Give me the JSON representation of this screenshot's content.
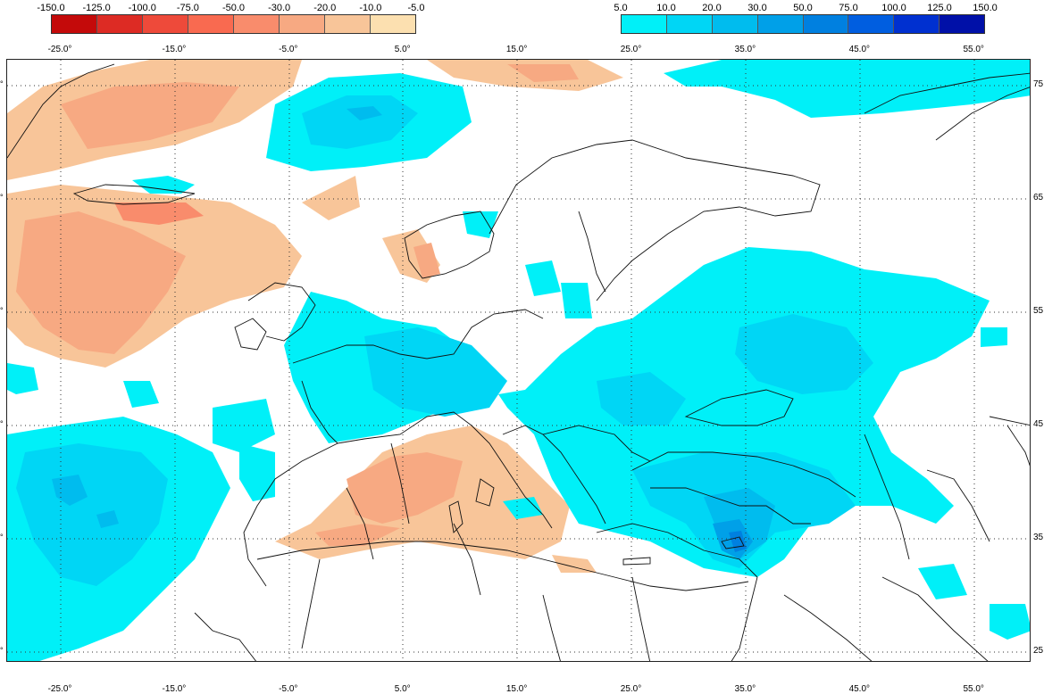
{
  "legend_negative": {
    "labels": [
      "-150.0",
      "-125.0",
      "-100.0",
      "-75.0",
      "-50.0",
      "-30.0",
      "-20.0",
      "-10.0",
      "-5.0"
    ],
    "colors": [
      "#c40a0a",
      "#dd2b24",
      "#ee4a3a",
      "#f96a50",
      "#f98c6c",
      "#f7a982",
      "#f8c599",
      "#fce0b0"
    ]
  },
  "legend_positive": {
    "labels": [
      "5.0",
      "10.0",
      "20.0",
      "30.0",
      "50.0",
      "75.0",
      "100.0",
      "125.0",
      "150.0"
    ],
    "colors": [
      "#00f0f8",
      "#00d6f5",
      "#00bcee",
      "#00a0e8",
      "#0080e0",
      "#005ee0",
      "#0030d0",
      "#0010a8"
    ]
  },
  "longitude_labels_top": [
    "-25.0°",
    "-15.0°",
    "-5.0°",
    "5.0°",
    "15.0°",
    "25.0°",
    "35.0°",
    "45.0°",
    "55.0°"
  ],
  "longitude_labels_bottom": [
    "-25.0°",
    "-15.0°",
    "-5.0°",
    "5.0°",
    "15.0°",
    "25.0°",
    "35.0°",
    "45.0°",
    "55.0°"
  ],
  "latitude_labels_right": [
    "75",
    "65",
    "55",
    "45",
    "35",
    "25"
  ]
}
